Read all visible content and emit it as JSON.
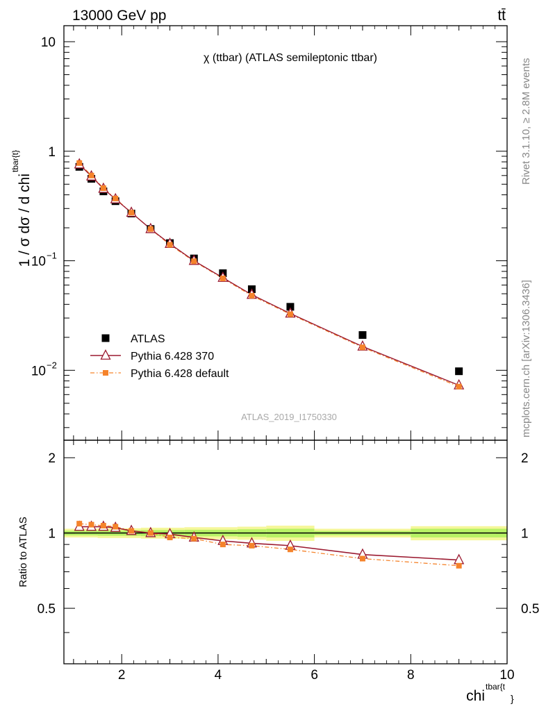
{
  "header": {
    "energy_label": "13000 GeV pp",
    "process_label": "tt̄"
  },
  "side_labels": {
    "rivet": "Rivet 3.1.10, ≥ 2.8M events",
    "source": "mcplots.cern.ch [arXiv:1306.3436]"
  },
  "colors": {
    "atlas": "#000000",
    "pythia_370": "#9b1a30",
    "pythia_default": "#f5832b",
    "band_inner": "#b7f265",
    "band_outer": "#f5f79a"
  },
  "chart_data": [
    {
      "type": "scatter",
      "title": "χ (ttbar) (ATLAS semileptonic ttbar)",
      "watermark": "ATLAS_2019_I1750330",
      "ylabel": "1 / σ dσ / d chi",
      "ylabel_sup": "tbar{t}",
      "yscale": "log",
      "ylim": [
        0.0023,
        14
      ],
      "xlim": [
        0.8,
        10.0
      ],
      "y_ticks": [
        {
          "value": 10,
          "label": "10"
        },
        {
          "value": 1,
          "label": "1"
        },
        {
          "value": 0.1,
          "label": "10",
          "exp": "−1"
        },
        {
          "value": 0.01,
          "label": "10",
          "exp": "−2"
        }
      ],
      "legend": {
        "position": "lower-left",
        "entries": [
          "ATLAS",
          "Pythia 6.428 370",
          "Pythia 6.428 default"
        ]
      },
      "x": [
        1.12,
        1.37,
        1.62,
        1.87,
        2.2,
        2.6,
        3.0,
        3.5,
        4.1,
        4.7,
        5.5,
        7.0,
        9.0
      ],
      "series": [
        {
          "name": "ATLAS",
          "marker": "square",
          "values": [
            0.72,
            0.56,
            0.43,
            0.35,
            0.27,
            0.195,
            0.145,
            0.105,
            0.077,
            0.055,
            0.038,
            0.021,
            0.0098
          ]
        },
        {
          "name": "Pythia 6.428 370",
          "marker": "triangle",
          "values": [
            0.76,
            0.59,
            0.455,
            0.365,
            0.275,
            0.195,
            0.143,
            0.1,
            0.07,
            0.049,
            0.033,
            0.0165,
            0.0073
          ]
        },
        {
          "name": "Pythia 6.428 default",
          "marker": "small-square",
          "values": [
            0.78,
            0.6,
            0.46,
            0.37,
            0.275,
            0.195,
            0.14,
            0.099,
            0.069,
            0.048,
            0.0325,
            0.0162,
            0.0071
          ]
        }
      ]
    },
    {
      "type": "line",
      "ylabel": "Ratio to ATLAS",
      "xlabel": "chi",
      "xlabel_sup": "tbar{t",
      "xlabel_tail": "}",
      "xlim": [
        0.8,
        10.0
      ],
      "ylim": [
        0.3,
        2.35
      ],
      "x_ticks": [
        2,
        4,
        6,
        8,
        10
      ],
      "y_ticks": [
        {
          "value": 2,
          "label": "2"
        },
        {
          "value": 1,
          "label": "1"
        },
        {
          "value": 0.5,
          "label": "0.5"
        }
      ],
      "band_bins": [
        {
          "x0": 0.8,
          "x1": 1.5,
          "inner": 0.022,
          "outer": 0.04
        },
        {
          "x0": 1.5,
          "x1": 2.4,
          "inner": 0.025,
          "outer": 0.045
        },
        {
          "x0": 2.4,
          "x1": 3.3,
          "inner": 0.028,
          "outer": 0.05
        },
        {
          "x0": 3.3,
          "x1": 4.4,
          "inner": 0.03,
          "outer": 0.055
        },
        {
          "x0": 4.4,
          "x1": 5.0,
          "inner": 0.035,
          "outer": 0.06
        },
        {
          "x0": 5.0,
          "x1": 6.0,
          "inner": 0.04,
          "outer": 0.07
        },
        {
          "x0": 6.0,
          "x1": 8.0,
          "inner": 0.02,
          "outer": 0.04
        },
        {
          "x0": 8.0,
          "x1": 10.0,
          "inner": 0.04,
          "outer": 0.065
        }
      ],
      "x": [
        1.12,
        1.37,
        1.62,
        1.87,
        2.2,
        2.6,
        3.0,
        3.5,
        4.1,
        4.7,
        5.5,
        7.0,
        9.0
      ],
      "series": [
        {
          "name": "Pythia 6.428 370",
          "values": [
            1.06,
            1.06,
            1.06,
            1.05,
            1.02,
            1.0,
            0.99,
            0.96,
            0.93,
            0.91,
            0.89,
            0.82,
            0.78
          ]
        },
        {
          "name": "Pythia 6.428 default",
          "values": [
            1.09,
            1.08,
            1.07,
            1.06,
            1.02,
            1.0,
            0.96,
            0.95,
            0.9,
            0.89,
            0.86,
            0.79,
            0.74
          ]
        }
      ]
    }
  ]
}
